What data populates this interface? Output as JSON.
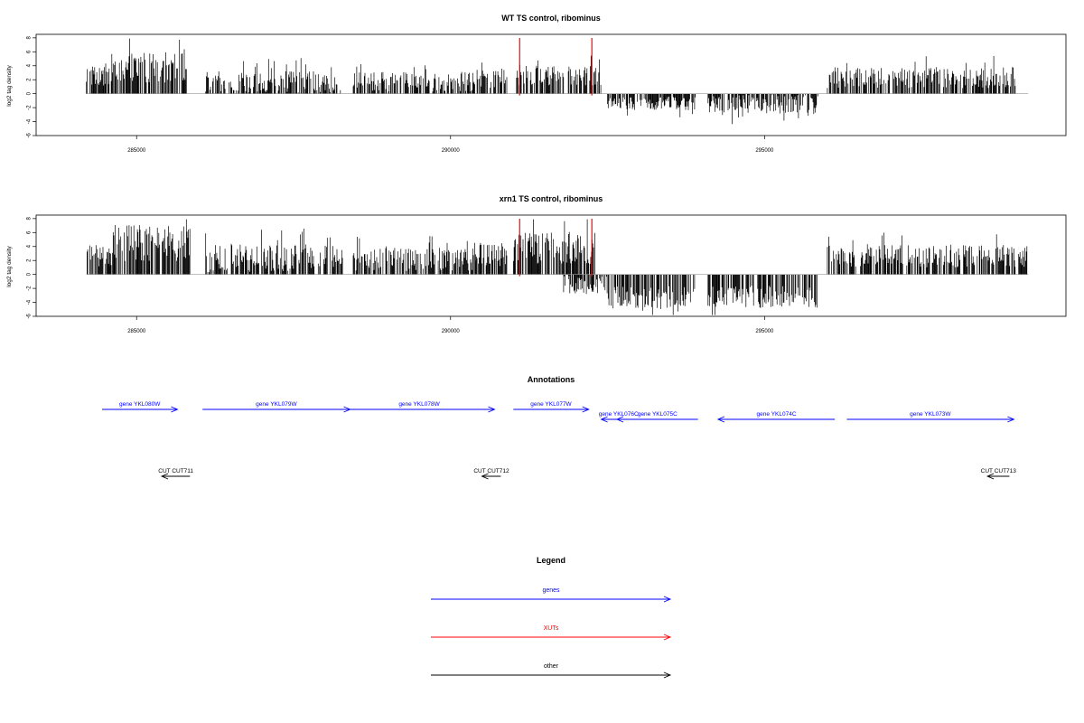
{
  "chart_data": [
    {
      "type": "bar",
      "title": "WT TS control, ribominus",
      "ylabel": "log2 tag density",
      "xlim": [
        283400,
        299800
      ],
      "ylim": [
        -6,
        8.5
      ],
      "xticks": [
        285000,
        290000,
        295000
      ],
      "xtick_labels": [
        "285000",
        "290000",
        "295000"
      ],
      "yticks": [
        -6,
        -4,
        -2,
        0,
        2,
        4,
        6,
        8
      ],
      "ytick_labels": [
        "-6",
        "-4",
        "-2",
        "0",
        "2",
        "4",
        "6",
        "8"
      ],
      "grid": false,
      "baseline": [
        284200,
        299200
      ],
      "markers": [
        291100,
        292250
      ],
      "marker_color": "#ff0000",
      "segments": [
        {
          "x": [
            284200,
            284600
          ],
          "sign": 1,
          "mean": 2.6,
          "spread": 1.5
        },
        {
          "x": [
            284550,
            285800
          ],
          "sign": 1,
          "mean": 3.8,
          "spread": 2.2
        },
        {
          "x": [
            286100,
            288250
          ],
          "sign": 1,
          "mean": 1.6,
          "spread": 1.6
        },
        {
          "x": [
            288450,
            290400
          ],
          "sign": 1,
          "mean": 1.7,
          "spread": 1.4
        },
        {
          "x": [
            290400,
            290900
          ],
          "sign": 1,
          "mean": 2.2,
          "spread": 1.4
        },
        {
          "x": [
            291050,
            292400
          ],
          "sign": 1,
          "mean": 2.6,
          "spread": 1.4
        },
        {
          "x": [
            292500,
            293900
          ],
          "sign": -1,
          "mean": 1.4,
          "spread": 1.0
        },
        {
          "x": [
            294100,
            295850
          ],
          "sign": -1,
          "mean": 1.5,
          "spread": 1.4
        },
        {
          "x": [
            296000,
            299000
          ],
          "sign": 1,
          "mean": 2.3,
          "spread": 1.5
        }
      ]
    },
    {
      "type": "bar",
      "title": "xrn1 TS control, ribominus",
      "ylabel": "log2 tag density",
      "xlim": [
        283400,
        299800
      ],
      "ylim": [
        -6,
        8.5
      ],
      "xticks": [
        285000,
        290000,
        295000
      ],
      "xtick_labels": [
        "285000",
        "290000",
        "295000"
      ],
      "yticks": [
        -6,
        -4,
        -2,
        0,
        2,
        4,
        6,
        8
      ],
      "ytick_labels": [
        "-6",
        "-4",
        "-2",
        "0",
        "2",
        "4",
        "6",
        "8"
      ],
      "grid": false,
      "baseline": [
        284200,
        299200
      ],
      "markers": [
        291100,
        292250
      ],
      "marker_color": "#ff0000",
      "segments": [
        {
          "x": [
            284200,
            284600
          ],
          "sign": 1,
          "mean": 2.6,
          "spread": 1.6
        },
        {
          "x": [
            284550,
            285850
          ],
          "sign": 1,
          "mean": 4.5,
          "spread": 2.6
        },
        {
          "x": [
            286100,
            288300
          ],
          "sign": 1,
          "mean": 2.3,
          "spread": 2.0
        },
        {
          "x": [
            288450,
            290400
          ],
          "sign": 1,
          "mean": 2.1,
          "spread": 1.7
        },
        {
          "x": [
            290400,
            290900
          ],
          "sign": 1,
          "mean": 2.8,
          "spread": 1.8
        },
        {
          "x": [
            291000,
            292300
          ],
          "sign": 1,
          "mean": 3.8,
          "spread": 2.3
        },
        {
          "x": [
            291800,
            292500
          ],
          "sign": -1,
          "mean": 1.5,
          "spread": 1.3
        },
        {
          "x": [
            292500,
            293900
          ],
          "sign": -1,
          "mean": 3.3,
          "spread": 1.6
        },
        {
          "x": [
            294100,
            295850
          ],
          "sign": -1,
          "mean": 3.2,
          "spread": 1.6
        },
        {
          "x": [
            296000,
            299200
          ],
          "sign": 1,
          "mean": 2.6,
          "spread": 1.6
        }
      ]
    }
  ],
  "annotations": {
    "title": "Annotations",
    "xlim": [
      283400,
      299800
    ],
    "features": [
      {
        "label": "gene YKL080W",
        "start": 284450,
        "end": 285650,
        "strand": "+",
        "row": 0,
        "color": "#0000ff"
      },
      {
        "label": "gene YKL079W",
        "start": 286050,
        "end": 288400,
        "strand": "+",
        "row": 0,
        "color": "#0000ff"
      },
      {
        "label": "gene YKL078W",
        "start": 288300,
        "end": 290700,
        "strand": "+",
        "row": 0,
        "color": "#0000ff"
      },
      {
        "label": "gene YKL077W",
        "start": 291000,
        "end": 292200,
        "strand": "+",
        "row": 0,
        "color": "#0000ff"
      },
      {
        "label": "gene YKL076C",
        "start": 292400,
        "end": 292950,
        "strand": "-",
        "row": 1,
        "color": "#0000ff"
      },
      {
        "label": "gene YKL075C",
        "start": 292650,
        "end": 293940,
        "strand": "-",
        "row": 1,
        "color": "#0000ff"
      },
      {
        "label": "gene YKL074C",
        "start": 294260,
        "end": 296120,
        "strand": "-",
        "row": 1,
        "color": "#0000ff"
      },
      {
        "label": "gene YKL073W",
        "start": 296310,
        "end": 298970,
        "strand": "+",
        "row": 1,
        "color": "#0000ff"
      },
      {
        "label": "CUT CUT711",
        "start": 285400,
        "end": 285850,
        "strand": "-",
        "row": 2,
        "color": "#000000"
      },
      {
        "label": "CUT CUT712",
        "start": 290500,
        "end": 290800,
        "strand": "-",
        "row": 2,
        "color": "#000000"
      },
      {
        "label": "CUT CUT713",
        "start": 298550,
        "end": 298900,
        "strand": "-",
        "row": 2,
        "color": "#000000"
      }
    ]
  },
  "legend": {
    "title": "Legend",
    "items": [
      {
        "label": "genes",
        "color": "#0000ff"
      },
      {
        "label": "XUTs",
        "color": "#ff0000"
      },
      {
        "label": "other",
        "color": "#000000"
      }
    ]
  }
}
